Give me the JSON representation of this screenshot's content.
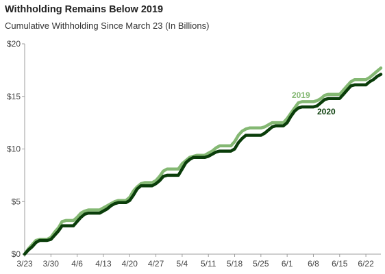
{
  "header": {
    "title": "Withholding Remains Below 2019",
    "subtitle": "Cumulative Withholding Since March 23 (In Billions)"
  },
  "chart_data": {
    "type": "line",
    "title": "Withholding Remains Below 2019",
    "subtitle": "Cumulative Withholding Since March 23 (In Billions)",
    "xlabel": "",
    "ylabel": "",
    "xlim": [
      "3/23",
      "6/26"
    ],
    "ylim": [
      0,
      20
    ],
    "y_ticks": [
      "$0",
      "$5",
      "$10",
      "$15",
      "$20"
    ],
    "y_tick_values": [
      0,
      5,
      10,
      15,
      20
    ],
    "x_ticks": [
      "3/23",
      "3/30",
      "4/6",
      "4/13",
      "4/20",
      "4/27",
      "5/4",
      "5/11",
      "5/18",
      "5/25",
      "6/1",
      "6/8",
      "6/15",
      "6/22"
    ],
    "grid": false,
    "legend": "inline labels near line ends",
    "series": [
      {
        "name": "2019",
        "color": "#84b873",
        "x": [
          "3/23",
          "3/24",
          "3/25",
          "3/26",
          "3/27",
          "3/28",
          "3/29",
          "3/30",
          "3/31",
          "4/1",
          "4/2",
          "4/3",
          "4/4",
          "4/5",
          "4/6",
          "4/7",
          "4/8",
          "4/9",
          "4/10",
          "4/11",
          "4/12",
          "4/13",
          "4/14",
          "4/15",
          "4/16",
          "4/17",
          "4/18",
          "4/19",
          "4/20",
          "4/21",
          "4/22",
          "4/23",
          "4/24",
          "4/25",
          "4/26",
          "4/27",
          "4/28",
          "4/29",
          "4/30",
          "5/1",
          "5/2",
          "5/3",
          "5/4",
          "5/5",
          "5/6",
          "5/7",
          "5/8",
          "5/9",
          "5/10",
          "5/11",
          "5/12",
          "5/13",
          "5/14",
          "5/15",
          "5/16",
          "5/17",
          "5/18",
          "5/19",
          "5/20",
          "5/21",
          "5/22",
          "5/23",
          "5/24",
          "5/25",
          "5/26",
          "5/27",
          "5/28",
          "5/29",
          "5/30",
          "5/31",
          "6/1",
          "6/2",
          "6/3",
          "6/4",
          "6/5",
          "6/6",
          "6/7",
          "6/8",
          "6/9",
          "6/10",
          "6/11",
          "6/12",
          "6/13",
          "6/14",
          "6/15",
          "6/16",
          "6/17",
          "6/18",
          "6/19",
          "6/20",
          "6/21",
          "6/22",
          "6/23",
          "6/24",
          "6/25",
          "6/26"
        ],
        "values": [
          0.0,
          0.5,
          0.9,
          1.3,
          1.4,
          1.4,
          1.4,
          1.6,
          2.1,
          2.5,
          3.1,
          3.2,
          3.2,
          3.2,
          3.5,
          3.9,
          4.1,
          4.2,
          4.2,
          4.2,
          4.2,
          4.4,
          4.6,
          4.8,
          5.0,
          5.1,
          5.1,
          5.1,
          5.4,
          6.0,
          6.4,
          6.7,
          6.8,
          6.8,
          6.8,
          7.0,
          7.4,
          7.9,
          8.1,
          8.1,
          8.1,
          8.1,
          8.6,
          8.9,
          9.2,
          9.3,
          9.4,
          9.4,
          9.4,
          9.6,
          9.8,
          10.1,
          10.3,
          10.3,
          10.3,
          10.3,
          10.7,
          11.3,
          11.7,
          11.9,
          12.0,
          12.0,
          12.0,
          12.0,
          12.1,
          12.3,
          12.5,
          12.5,
          12.5,
          12.5,
          12.9,
          13.4,
          13.9,
          14.4,
          14.5,
          14.5,
          14.5,
          14.5,
          14.6,
          14.8,
          15.1,
          15.2,
          15.2,
          15.2,
          15.2,
          15.6,
          16.0,
          16.4,
          16.6,
          16.6,
          16.6,
          16.6,
          16.8,
          17.1,
          17.4,
          17.7
        ]
      },
      {
        "name": "2020",
        "color": "#0a3d0a",
        "x": [
          "3/23",
          "3/24",
          "3/25",
          "3/26",
          "3/27",
          "3/28",
          "3/29",
          "3/30",
          "3/31",
          "4/1",
          "4/2",
          "4/3",
          "4/4",
          "4/5",
          "4/6",
          "4/7",
          "4/8",
          "4/9",
          "4/10",
          "4/11",
          "4/12",
          "4/13",
          "4/14",
          "4/15",
          "4/16",
          "4/17",
          "4/18",
          "4/19",
          "4/20",
          "4/21",
          "4/22",
          "4/23",
          "4/24",
          "4/25",
          "4/26",
          "4/27",
          "4/28",
          "4/29",
          "4/30",
          "5/1",
          "5/2",
          "5/3",
          "5/4",
          "5/5",
          "5/6",
          "5/7",
          "5/8",
          "5/9",
          "5/10",
          "5/11",
          "5/12",
          "5/13",
          "5/14",
          "5/15",
          "5/16",
          "5/17",
          "5/18",
          "5/19",
          "5/20",
          "5/21",
          "5/22",
          "5/23",
          "5/24",
          "5/25",
          "5/26",
          "5/27",
          "5/28",
          "5/29",
          "5/30",
          "5/31",
          "6/1",
          "6/2",
          "6/3",
          "6/4",
          "6/5",
          "6/6",
          "6/7",
          "6/8",
          "6/9",
          "6/10",
          "6/11",
          "6/12",
          "6/13",
          "6/14",
          "6/15",
          "6/16",
          "6/17",
          "6/18",
          "6/19",
          "6/20",
          "6/21",
          "6/22",
          "6/23",
          "6/24",
          "6/25",
          "6/26"
        ],
        "values": [
          0.0,
          0.4,
          0.7,
          1.1,
          1.3,
          1.3,
          1.3,
          1.4,
          1.8,
          2.2,
          2.7,
          2.7,
          2.7,
          2.7,
          3.1,
          3.5,
          3.8,
          3.9,
          3.9,
          3.9,
          3.9,
          4.1,
          4.3,
          4.6,
          4.8,
          4.9,
          4.9,
          4.9,
          5.1,
          5.6,
          6.2,
          6.5,
          6.5,
          6.5,
          6.5,
          6.7,
          7.0,
          7.4,
          7.5,
          7.5,
          7.5,
          7.5,
          8.1,
          8.7,
          9.0,
          9.2,
          9.2,
          9.2,
          9.2,
          9.3,
          9.5,
          9.7,
          9.8,
          9.8,
          9.8,
          9.8,
          10.0,
          10.6,
          11.0,
          11.3,
          11.3,
          11.3,
          11.3,
          11.3,
          11.5,
          11.8,
          12.1,
          12.2,
          12.2,
          12.2,
          12.5,
          13.1,
          13.6,
          13.9,
          14.0,
          14.0,
          14.0,
          14.0,
          14.1,
          14.4,
          14.7,
          14.8,
          14.8,
          14.8,
          14.8,
          15.2,
          15.6,
          16.0,
          16.1,
          16.1,
          16.1,
          16.1,
          16.4,
          16.6,
          16.9,
          17.1
        ]
      }
    ]
  }
}
